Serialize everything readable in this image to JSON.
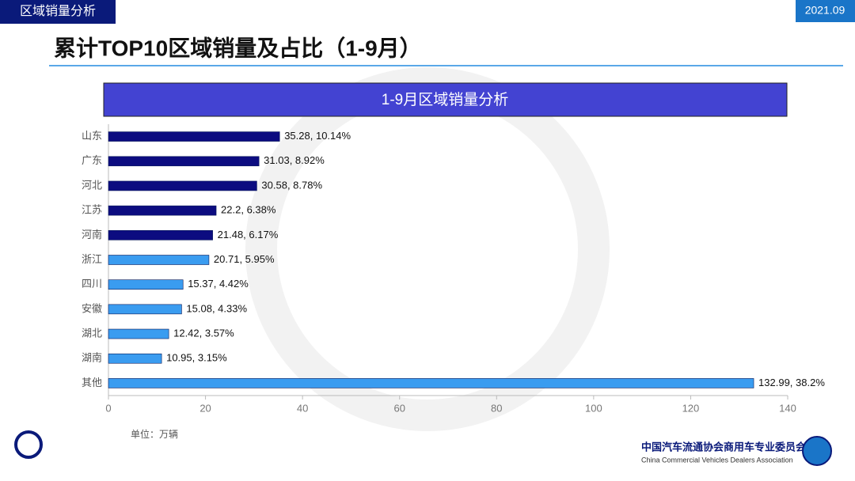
{
  "header": {
    "section": "区域销量分析",
    "date": "2021.09",
    "title": "累计TOP10区域销量及占比（1-9月）"
  },
  "chart_data": {
    "type": "hbar",
    "title": "1-9月区域销量分析",
    "categories": [
      "山东",
      "广东",
      "河北",
      "江苏",
      "河南",
      "浙江",
      "四川",
      "安徽",
      "湖北",
      "湖南",
      "其他"
    ],
    "values": [
      35.28,
      31.03,
      30.58,
      22.2,
      21.48,
      20.71,
      15.37,
      15.08,
      12.42,
      10.95,
      132.99
    ],
    "value_labels": [
      "35.28, 10.14%",
      "31.03, 8.92%",
      "30.58, 8.78%",
      "22.2, 6.38%",
      "21.48, 6.17%",
      "20.71, 5.95%",
      "15.37, 4.42%",
      "15.08, 4.33%",
      "12.42, 3.57%",
      "10.95, 3.15%",
      "132.99, 38.2%"
    ],
    "colors": [
      "#0c0c80",
      "#0c0c80",
      "#0c0c80",
      "#0c0c80",
      "#0c0c80",
      "#3a9cf0",
      "#3a9cf0",
      "#3a9cf0",
      "#3a9cf0",
      "#3a9cf0",
      "#3a9cf0"
    ],
    "xlim": [
      0,
      140
    ],
    "xticks": [
      0,
      20,
      40,
      60,
      80,
      100,
      120,
      140
    ],
    "unit_note": "单位：万辆"
  },
  "footer": {
    "org_cn": "中国汽车流通协会商用车专业委员会",
    "org_en": "China Commercial Vehicles Dealers Association"
  }
}
